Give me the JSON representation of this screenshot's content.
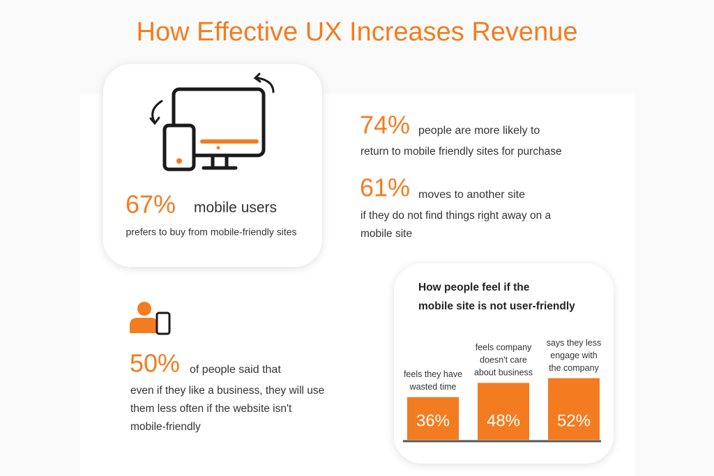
{
  "title": "How Effective UX Increases Revenue",
  "stats": [
    {
      "percent": "67%",
      "lead": "mobile users",
      "body": [
        "prefers to buy from mobile-friendly sites"
      ]
    },
    {
      "percent": "74%",
      "lead": "people are more likely to",
      "body": [
        "return to mobile friendly sites for purchase"
      ]
    },
    {
      "percent": "61%",
      "lead": "moves to another site",
      "body": [
        "if they do not find things right away on a",
        "mobile site"
      ]
    },
    {
      "percent": "50%",
      "lead": "of people said that",
      "body": [
        "even if they like a business, they will use",
        "them less often if the website isn't",
        "mobile-friendly"
      ]
    }
  ],
  "chart_data": {
    "type": "bar",
    "title": [
      "How people feel if the",
      "mobile site is not user-friendly"
    ],
    "categories": [
      [
        "feels they have",
        "wasted time"
      ],
      [
        "feels company",
        "doesn't care",
        "about business"
      ],
      [
        "says they less",
        "engage with",
        "the company"
      ]
    ],
    "values": [
      36,
      48,
      52
    ],
    "value_labels": [
      "36%",
      "48%",
      "52%"
    ],
    "color": "#f47c20"
  }
}
